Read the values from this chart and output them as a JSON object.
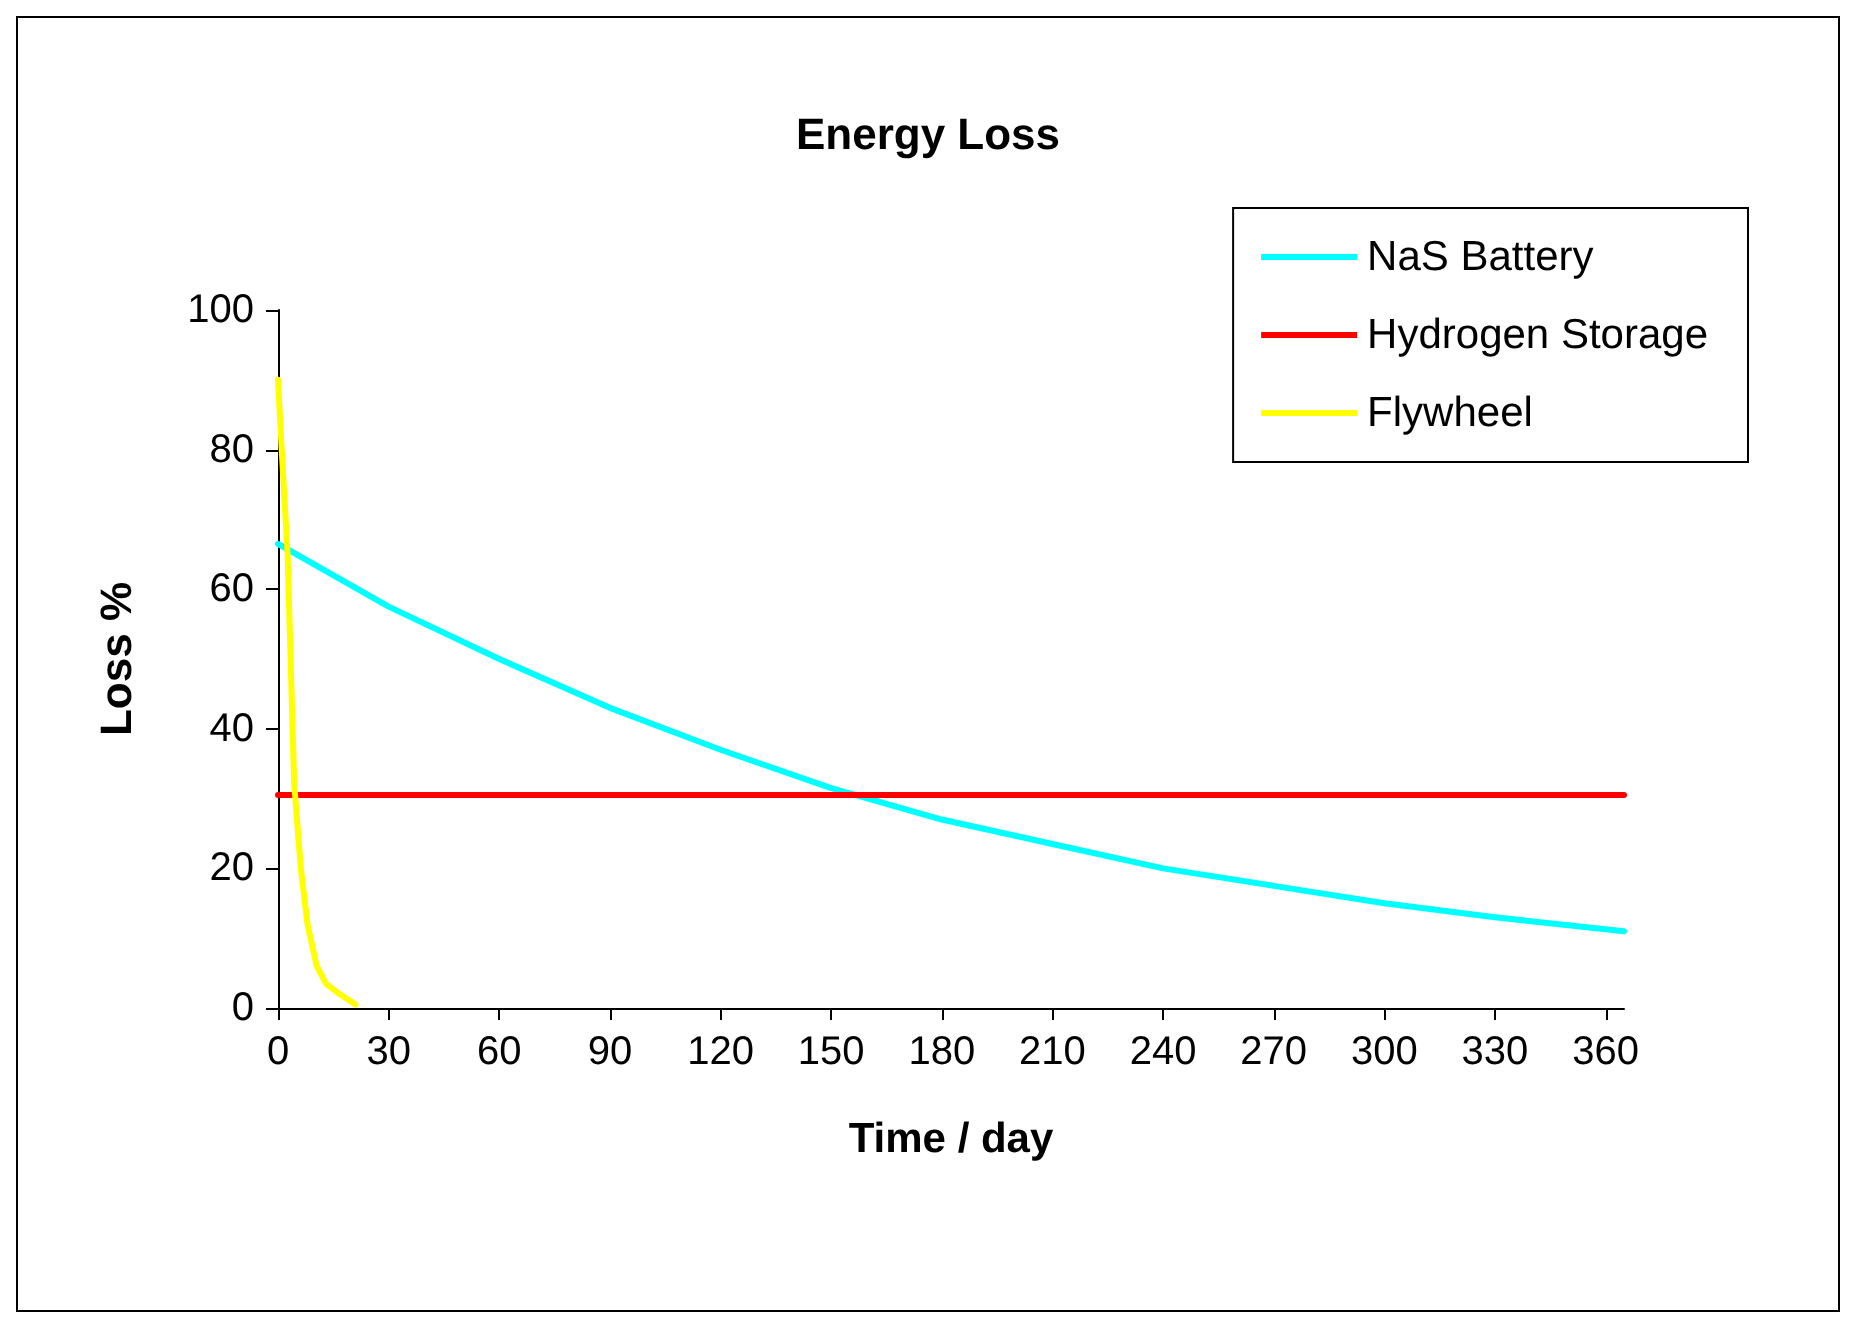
{
  "chart_data": {
    "type": "line",
    "title": "Energy Loss",
    "xlabel": "Time / day",
    "ylabel": "Loss %",
    "xlim": [
      0,
      365
    ],
    "xticks": [
      0,
      30,
      60,
      90,
      120,
      150,
      180,
      210,
      240,
      270,
      300,
      330,
      360
    ],
    "ylim": [
      0,
      100
    ],
    "yticks": [
      0,
      20,
      40,
      60,
      80,
      100
    ],
    "grid": false,
    "legend": "top right",
    "marker": "none",
    "line_style": "solid",
    "series": [
      {
        "name": "NaS Battery",
        "color": "#00ffff",
        "x": [
          0,
          30,
          60,
          90,
          120,
          150,
          180,
          210,
          240,
          270,
          300,
          330,
          365
        ],
        "values": [
          66.5,
          57.5,
          50,
          43,
          37,
          31.5,
          27,
          23.5,
          20,
          17.5,
          15,
          13,
          11
        ]
      },
      {
        "name": "Hydrogen Storage",
        "color": "#ff0000",
        "x": [
          0,
          365
        ],
        "values": [
          30.5,
          30.5
        ]
      },
      {
        "name": "Flywheel",
        "color": "#ffff00",
        "x": [
          0,
          1,
          2.6,
          4.4,
          6.2,
          8,
          10.5,
          13,
          16.7,
          21
        ],
        "values": [
          90,
          80,
          65,
          32,
          20,
          12,
          6,
          3.5,
          2,
          0.5
        ]
      }
    ]
  }
}
